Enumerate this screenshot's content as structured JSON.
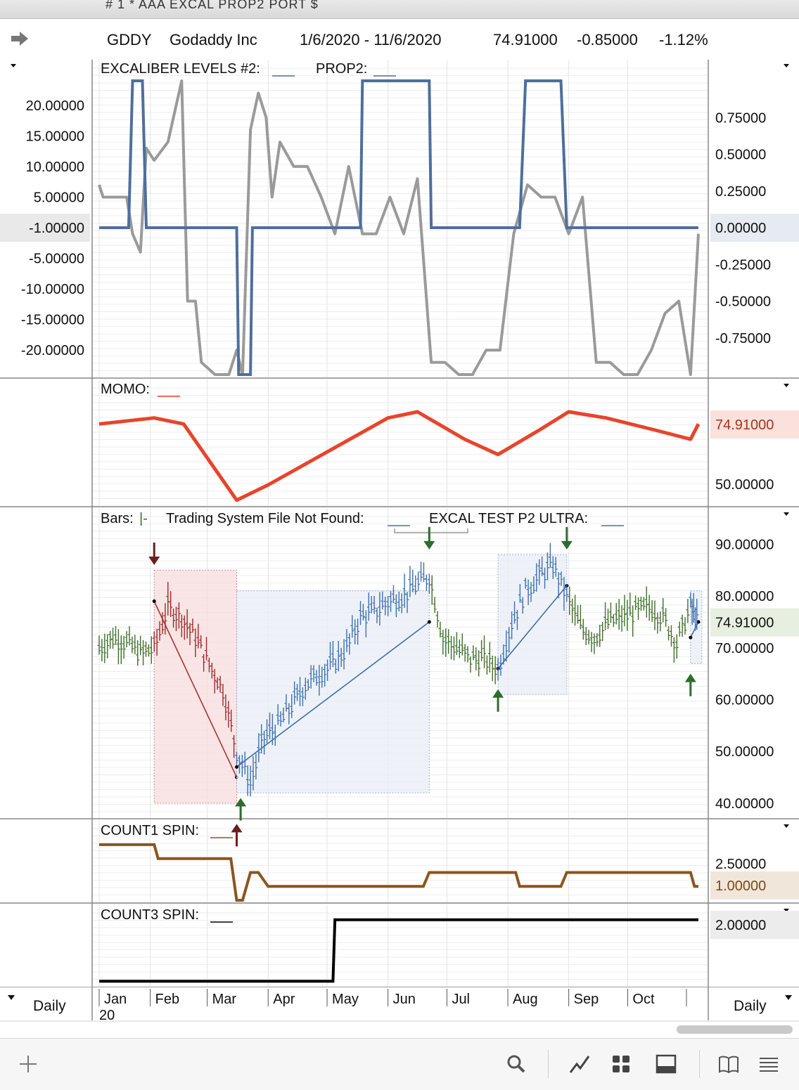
{
  "window": {
    "title": "# 1 * AAA EXCAL PROP2 PORT $"
  },
  "header": {
    "symbol": "GDDY",
    "company": "Godaddy Inc",
    "date_range": "1/6/2020 - 11/6/2020",
    "last": "74.91000",
    "change": "-0.85000",
    "change_pct": "-1.12%"
  },
  "colors": {
    "gray_line": "#9a9a9a",
    "blue_line": "#4e6f9c",
    "momo": "#e8442a",
    "bars_up": "#3f6e2a",
    "bars_down": "#9c2a2a",
    "bars_blue": "#3d6fae",
    "count1": "#8a5520",
    "count3": "#000000"
  },
  "panes": {
    "excal": {
      "title": "EXCALIBER LEVELS #2:",
      "title2": "PROP2:",
      "left_ticks": [
        "20.00000",
        "15.00000",
        "10.00000",
        "5.00000",
        "-1.00000",
        "-5.00000",
        "-10.00000",
        "-15.00000",
        "-20.00000"
      ],
      "right_ticks": [
        "0.75000",
        "0.50000",
        "0.25000",
        "0.00000",
        "-0.25000",
        "-0.50000",
        "-0.75000"
      ]
    },
    "momo": {
      "title": "MOMO:",
      "right_ticks": [
        "74.91000",
        "50.00000"
      ]
    },
    "bars": {
      "title": "Bars:",
      "bars_glyph": "|-",
      "title2": "Trading System File Not Found:",
      "title3": "EXCAL TEST P2 ULTRA:",
      "right_ticks": [
        "90.00000",
        "80.00000",
        "74.91000",
        "70.00000",
        "60.00000",
        "50.00000",
        "40.00000"
      ]
    },
    "count1": {
      "title": "COUNT1 SPIN:",
      "right_ticks": [
        "2.50000",
        "1.00000"
      ]
    },
    "count3": {
      "title": "COUNT3 SPIN:",
      "right_ticks": [
        "2.00000"
      ]
    }
  },
  "xaxis": {
    "months": [
      "Jan",
      "Feb",
      "Mar",
      "Apr",
      "May",
      "Jun",
      "Jul",
      "Aug",
      "Sep",
      "Oct"
    ],
    "year": "20"
  },
  "period_left": "Daily",
  "period_right": "Daily",
  "toolbar_icons": [
    "plus-icon",
    "search-icon",
    "draw-line-icon",
    "grid-icon",
    "layout-icon",
    "book-icon",
    "menu-icon"
  ],
  "chart_data": [
    {
      "type": "line",
      "title": "EXCALIBER LEVELS #2",
      "series": [
        {
          "name": "EXCALIBER LEVELS #2",
          "axis": "left",
          "x": [
            "2020-01-06",
            "2020-01-08",
            "2020-01-20",
            "2020-01-23",
            "2020-01-27",
            "2020-01-30",
            "2020-02-03",
            "2020-02-10",
            "2020-02-17",
            "2020-02-20",
            "2020-02-24",
            "2020-02-27",
            "2020-03-05",
            "2020-03-12",
            "2020-03-16",
            "2020-03-19",
            "2020-03-23",
            "2020-03-27",
            "2020-03-31",
            "2020-04-03",
            "2020-04-07",
            "2020-04-14",
            "2020-04-21",
            "2020-04-28",
            "2020-05-05",
            "2020-05-12",
            "2020-05-19",
            "2020-05-26",
            "2020-06-02",
            "2020-06-09",
            "2020-06-16",
            "2020-06-23",
            "2020-06-30",
            "2020-07-07",
            "2020-07-14",
            "2020-07-21",
            "2020-07-28",
            "2020-08-04",
            "2020-08-11",
            "2020-08-18",
            "2020-08-25",
            "2020-09-01",
            "2020-09-08",
            "2020-09-15",
            "2020-09-22",
            "2020-09-29",
            "2020-10-06",
            "2020-10-13",
            "2020-10-20",
            "2020-10-27",
            "2020-11-02",
            "2020-11-06"
          ],
          "values": [
            7,
            5,
            5,
            -1,
            -4,
            13,
            11,
            14,
            24,
            -12,
            -12,
            -22,
            -24,
            -24,
            -20,
            -24,
            16,
            22,
            18,
            5,
            14,
            10,
            10,
            5,
            -1,
            10,
            -1,
            -1,
            5,
            -1,
            8,
            -22,
            -22,
            -24,
            -24,
            -20,
            -20,
            -1,
            7,
            5,
            5,
            -1,
            5,
            -22,
            -22,
            -24,
            -24,
            -20,
            -14,
            -12,
            -24,
            -1
          ],
          "ylim": [
            -24,
            24
          ]
        },
        {
          "name": "PROP2",
          "axis": "right",
          "x": [
            "2020-01-06",
            "2020-01-21",
            "2020-01-23",
            "2020-01-28",
            "2020-01-30",
            "2020-03-16",
            "2020-03-17",
            "2020-03-23",
            "2020-03-24",
            "2020-05-18",
            "2020-05-19",
            "2020-06-22",
            "2020-06-23",
            "2020-08-07",
            "2020-08-10",
            "2020-08-28",
            "2020-08-31",
            "2020-11-06"
          ],
          "values": [
            0,
            0,
            1,
            1,
            0,
            0,
            -1,
            -1,
            0,
            0,
            1,
            1,
            0,
            0,
            1,
            1,
            0,
            0
          ],
          "ylim": [
            -1,
            1
          ]
        }
      ]
    },
    {
      "type": "line",
      "title": "MOMO",
      "series": [
        {
          "name": "MOMO",
          "x": [
            "2020-01-06",
            "2020-02-03",
            "2020-02-18",
            "2020-03-16",
            "2020-04-01",
            "2020-06-01",
            "2020-06-16",
            "2020-07-10",
            "2020-07-27",
            "2020-08-17",
            "2020-09-01",
            "2020-09-20",
            "2020-10-15",
            "2020-11-02",
            "2020-11-06"
          ],
          "values": [
            70,
            72,
            70,
            45,
            50,
            72,
            74,
            65,
            60,
            68,
            74,
            72,
            68,
            65,
            70
          ],
          "ylim": [
            44,
            80
          ]
        }
      ]
    },
    {
      "type": "bar",
      "title": "Bars",
      "ylim": [
        37,
        94
      ],
      "series": [
        {
          "name": "GDDY",
          "x": [
            "2020-01-06",
            "2020-01-13",
            "2020-01-20",
            "2020-01-27",
            "2020-02-03",
            "2020-02-10",
            "2020-02-17",
            "2020-02-24",
            "2020-03-02",
            "2020-03-09",
            "2020-03-16",
            "2020-03-23",
            "2020-03-30",
            "2020-04-06",
            "2020-04-13",
            "2020-04-20",
            "2020-04-27",
            "2020-05-04",
            "2020-05-11",
            "2020-05-18",
            "2020-05-25",
            "2020-06-01",
            "2020-06-08",
            "2020-06-15",
            "2020-06-22",
            "2020-06-29",
            "2020-07-06",
            "2020-07-13",
            "2020-07-20",
            "2020-07-27",
            "2020-08-03",
            "2020-08-10",
            "2020-08-17",
            "2020-08-24",
            "2020-08-31",
            "2020-09-07",
            "2020-09-14",
            "2020-09-21",
            "2020-09-28",
            "2020-10-05",
            "2020-10-12",
            "2020-10-19",
            "2020-10-26",
            "2020-11-02",
            "2020-11-06"
          ],
          "values": [
            70,
            72,
            71,
            69,
            70,
            78,
            76,
            72,
            67,
            62,
            50,
            44,
            53,
            55,
            59,
            63,
            65,
            67,
            70,
            76,
            77,
            79,
            80,
            82,
            84,
            72,
            70,
            68,
            68,
            66,
            75,
            81,
            84,
            86,
            80,
            74,
            72,
            75,
            76,
            77,
            78,
            76,
            71,
            78,
            75
          ]
        }
      ],
      "trades": [
        {
          "side": "short",
          "entry_x": "2020-02-03",
          "entry": 79,
          "exit_x": "2020-03-16",
          "exit": 45
        },
        {
          "side": "long",
          "entry_x": "2020-03-16",
          "entry": 47,
          "exit_x": "2020-06-22",
          "exit": 75
        },
        {
          "side": "long",
          "entry_x": "2020-07-27",
          "entry": 66,
          "exit_x": "2020-08-31",
          "exit": 82
        },
        {
          "side": "long",
          "entry_x": "2020-11-02",
          "entry": 72,
          "exit_x": "2020-11-06",
          "exit": 75
        }
      ]
    },
    {
      "type": "line",
      "title": "COUNT1 SPIN",
      "series": [
        {
          "name": "COUNT1 SPIN",
          "x": [
            "2020-01-06",
            "2020-02-03",
            "2020-02-05",
            "2020-03-13",
            "2020-03-16",
            "2020-03-19",
            "2020-03-23",
            "2020-03-27",
            "2020-04-01",
            "2020-06-19",
            "2020-06-22",
            "2020-08-05",
            "2020-08-07",
            "2020-08-28",
            "2020-08-31",
            "2020-11-02",
            "2020-11-04",
            "2020-11-06"
          ],
          "values": [
            4,
            4,
            3,
            3,
            0,
            0,
            2,
            2,
            1,
            1,
            2,
            2,
            1,
            1,
            2,
            2,
            1,
            1
          ],
          "ylim": [
            -0.2,
            4.6
          ]
        }
      ]
    },
    {
      "type": "line",
      "title": "COUNT3 SPIN",
      "series": [
        {
          "name": "COUNT3 SPIN",
          "x": [
            "2020-01-06",
            "2020-05-04",
            "2020-05-05",
            "2020-11-06"
          ],
          "values": [
            0,
            0,
            2,
            2
          ],
          "ylim": [
            -0.2,
            2.2
          ]
        }
      ]
    }
  ]
}
